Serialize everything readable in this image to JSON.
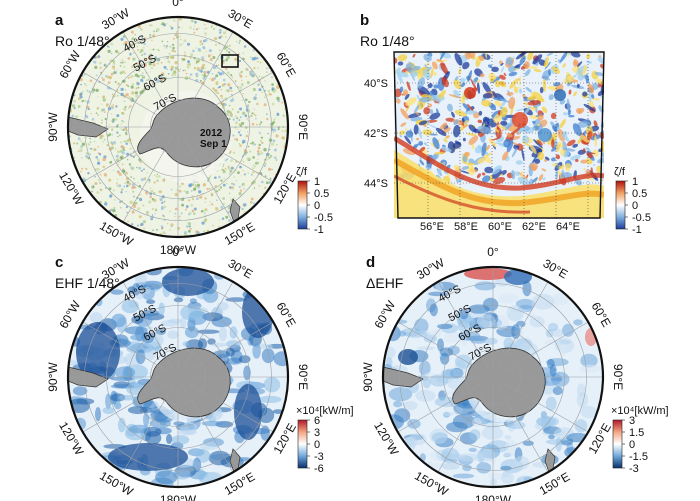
{
  "panels": [
    {
      "letter": "a",
      "title": "Ro 1/48°",
      "map": "polar",
      "field": "vorticity",
      "lon_labels": [
        "0°",
        "30°E",
        "60°E",
        "90°E",
        "120°E",
        "150°E",
        "180°W",
        "150°W",
        "120°W",
        "90°W",
        "60°W",
        "30°W"
      ],
      "lat_labels": [
        "40°S",
        "50°S",
        "60°S",
        "70°S"
      ],
      "annotation": [
        "2012",
        "Sep 1"
      ],
      "colorbar": {
        "title": "ζ/f",
        "ticks": [
          "1",
          "0.5",
          "0",
          "-0.5",
          "-1"
        ]
      }
    },
    {
      "letter": "b",
      "title": "Ro 1/48°",
      "map": "regional",
      "field": "vorticity",
      "y_ticks": [
        "40°S",
        "42°S",
        "44°S"
      ],
      "x_ticks": [
        "56°E",
        "58°E",
        "60°E",
        "62°E",
        "64°E"
      ],
      "colorbar": {
        "title": "ζ/f",
        "ticks": [
          "1",
          "0.5",
          "0",
          "-0.5",
          "-1"
        ]
      }
    },
    {
      "letter": "c",
      "title": "EHF 1/48°",
      "map": "polar",
      "field": "ehf",
      "lon_labels": [
        "0°",
        "30°E",
        "60°E",
        "90°E",
        "120°E",
        "150°E",
        "180°W",
        "150°W",
        "120°W",
        "90°W",
        "60°W",
        "30°W"
      ],
      "lat_labels": [
        "40°S",
        "50°S",
        "60°S",
        "70°S"
      ],
      "colorbar": {
        "title": "×10⁴[kW/m]",
        "ticks": [
          "6",
          "3",
          "0",
          "-3",
          "-6"
        ]
      }
    },
    {
      "letter": "d",
      "title": "ΔEHF",
      "map": "polar",
      "field": "dehf",
      "lon_labels": [
        "0°",
        "30°E",
        "60°E",
        "90°E",
        "120°E",
        "150°E",
        "180°W",
        "150°W",
        "120°W",
        "90°W",
        "60°W",
        "30°W"
      ],
      "lat_labels": [
        "40°S",
        "50°S",
        "60°S",
        "70°S"
      ],
      "colorbar": {
        "title": "×10⁴[kW/m]",
        "ticks": [
          "3",
          "1.5",
          "0",
          "-1.5",
          "-3"
        ]
      }
    }
  ],
  "chart_data": [
    {
      "type": "heatmap",
      "title": "Ro 1/48°",
      "projection": "south polar stereographic",
      "variable": "ζ/f",
      "range": [
        -1,
        1
      ],
      "colormap": [
        "#1f3c9a",
        "#7fb0e0",
        "#ffffff",
        "#f0a060",
        "#b01010"
      ]
    },
    {
      "type": "heatmap",
      "title": "Ro 1/48°",
      "variable": "ζ/f",
      "x_range": [
        "55°E",
        "65°E"
      ],
      "y_range": [
        "45°S",
        "39°S"
      ],
      "range": [
        -1,
        1
      ],
      "colormap": [
        "#1f3c9a",
        "#7fb0e0",
        "#ffffff",
        "#f0a060",
        "#b01010"
      ]
    },
    {
      "type": "heatmap",
      "title": "EHF 1/48°",
      "projection": "south polar stereographic",
      "variable": "EHF",
      "units": "×10⁴[kW/m]",
      "range": [
        -6,
        6
      ],
      "colormap": [
        "#08306b",
        "#4a8fd0",
        "#ffffff",
        "#f4a582",
        "#b2182b"
      ]
    },
    {
      "type": "heatmap",
      "title": "ΔEHF",
      "projection": "south polar stereographic",
      "variable": "ΔEHF",
      "units": "×10⁴[kW/m]",
      "range": [
        -3,
        3
      ],
      "colormap": [
        "#08306b",
        "#4a8fd0",
        "#ffffff",
        "#f4a582",
        "#b2182b"
      ]
    }
  ]
}
